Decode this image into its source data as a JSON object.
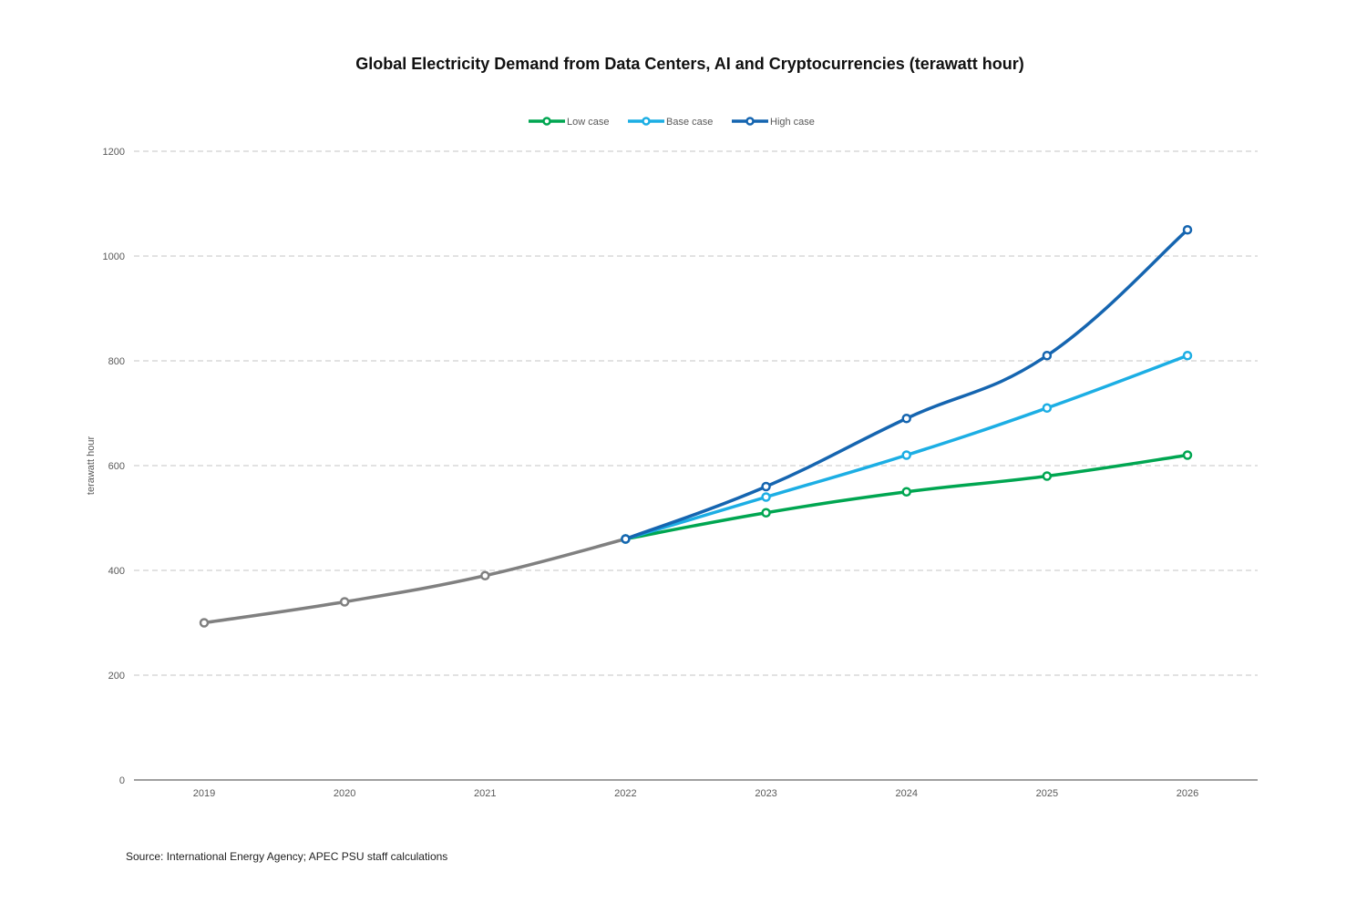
{
  "chart_data": {
    "type": "line",
    "title": "Global Electricity Demand from Data Centers, AI and Cryptocurrencies (terawatt hour)",
    "ylabel": "terawatt hour",
    "xlabel": "",
    "source": "Source: International Energy Agency; APEC PSU staff calculations",
    "categories": [
      "2019",
      "2020",
      "2021",
      "2022",
      "2023",
      "2024",
      "2025",
      "2026"
    ],
    "ylim": [
      0,
      1200
    ],
    "yticks": [
      0,
      200,
      400,
      600,
      800,
      1000,
      1200
    ],
    "grid": true,
    "legend_position": "top-center",
    "historical": {
      "color": "#808080",
      "values": [
        300,
        340,
        390,
        460,
        null,
        null,
        null,
        null
      ]
    },
    "series": [
      {
        "name": "Low case",
        "color": "#00A651",
        "values": [
          null,
          null,
          null,
          460,
          510,
          550,
          580,
          620
        ]
      },
      {
        "name": "Base case",
        "color": "#1CAEE4",
        "values": [
          null,
          null,
          null,
          460,
          540,
          620,
          710,
          810
        ]
      },
      {
        "name": "High case",
        "color": "#1565B0",
        "values": [
          null,
          null,
          null,
          460,
          560,
          690,
          810,
          1050
        ]
      }
    ]
  }
}
